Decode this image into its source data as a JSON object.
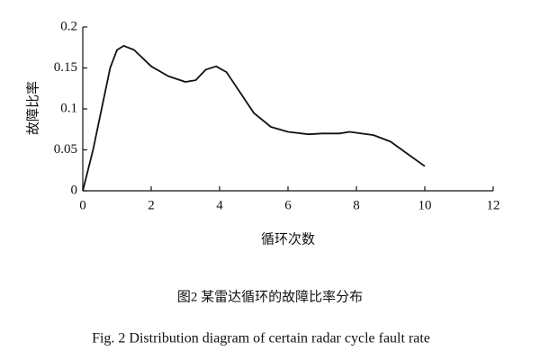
{
  "chart_data": {
    "type": "line",
    "x_label": "循环次数",
    "y_label": "故障比率",
    "caption_cn": "图2  某雷达循环的故障比率分布",
    "caption_en": "Fig. 2   Distribution diagram of certain radar cycle fault rate",
    "x": [
      0,
      0.3,
      0.6,
      0.8,
      1.0,
      1.2,
      1.5,
      2.0,
      2.5,
      3.0,
      3.3,
      3.6,
      3.9,
      4.2,
      4.6,
      5.0,
      5.5,
      6.0,
      6.6,
      7.0,
      7.5,
      7.8,
      8.5,
      9.0,
      9.5,
      10.0
    ],
    "series": [
      {
        "color": "#111111",
        "values": [
          0,
          0.05,
          0.11,
          0.15,
          0.172,
          0.177,
          0.172,
          0.152,
          0.14,
          0.133,
          0.135,
          0.148,
          0.152,
          0.145,
          0.12,
          0.095,
          0.078,
          0.072,
          0.069,
          0.07,
          0.07,
          0.072,
          0.068,
          0.06,
          0.045,
          0.03
        ]
      }
    ],
    "xlim": [
      0,
      12
    ],
    "xticks": [
      0,
      2,
      4,
      6,
      8,
      10,
      12
    ],
    "ylim": [
      0,
      0.2
    ],
    "yticks": [
      0,
      0.05,
      0.1,
      0.15,
      0.2
    ]
  }
}
